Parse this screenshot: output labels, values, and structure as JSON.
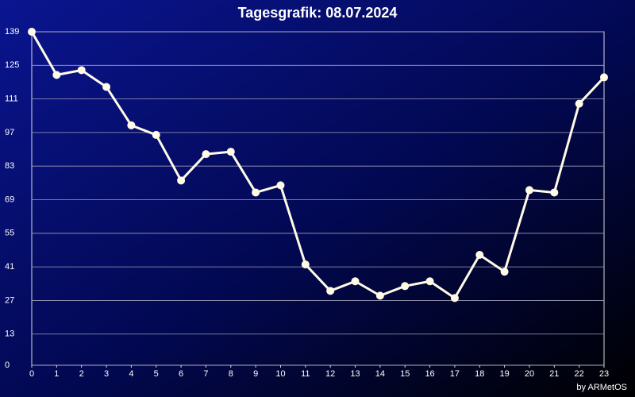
{
  "chart_data": {
    "type": "line",
    "title": "Tagesgrafik: 08.07.2024",
    "credit": "by ARMetOS",
    "x": [
      0,
      1,
      2,
      3,
      4,
      5,
      6,
      7,
      8,
      9,
      10,
      11,
      12,
      13,
      14,
      15,
      16,
      17,
      18,
      19,
      20,
      21,
      22,
      23
    ],
    "values": [
      139,
      121,
      123,
      116,
      100,
      96,
      77,
      88,
      89,
      72,
      75,
      42,
      31,
      35,
      29,
      33,
      35,
      28,
      46,
      39,
      73,
      72,
      109,
      120
    ],
    "color": "#fffbe6",
    "xlim": [
      0,
      23
    ],
    "xticks": [
      0,
      1,
      2,
      3,
      4,
      5,
      6,
      7,
      8,
      9,
      10,
      11,
      12,
      13,
      14,
      15,
      16,
      17,
      18,
      19,
      20,
      21,
      22,
      23
    ],
    "ylim": [
      0,
      139
    ],
    "yticks": [
      0,
      13,
      27,
      41,
      55,
      69,
      83,
      97,
      111,
      125,
      139
    ],
    "grid": true
  }
}
